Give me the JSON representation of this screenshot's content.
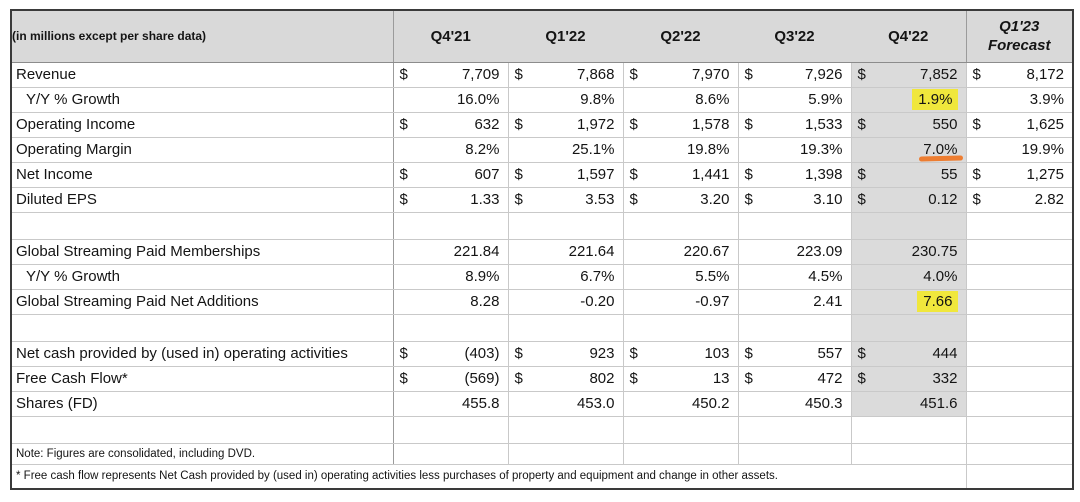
{
  "chart_data": {
    "type": "table",
    "units_note": "(in millions except per share data)",
    "columns": [
      "Q4'21",
      "Q1'22",
      "Q2'22",
      "Q3'22",
      "Q4'22",
      "Q1'23 Forecast"
    ],
    "forecast_header": {
      "line1": "Q1'23",
      "line2": "Forecast"
    },
    "rows": [
      {
        "type": "data",
        "format": "money",
        "label": "Revenue",
        "gray": true,
        "values": [
          "7,709",
          "7,868",
          "7,970",
          "7,926",
          "7,852",
          "8,172"
        ]
      },
      {
        "type": "data",
        "format": "plain",
        "label": "Y/Y % Growth",
        "indent": true,
        "gray": true,
        "highlight_yellow_col": 4,
        "values": [
          "16.0%",
          "9.8%",
          "8.6%",
          "5.9%",
          "1.9%",
          "3.9%"
        ]
      },
      {
        "type": "data",
        "format": "money",
        "label": "Operating Income",
        "gray": true,
        "values": [
          "632",
          "1,972",
          "1,578",
          "1,533",
          "550",
          "1,625"
        ]
      },
      {
        "type": "data",
        "format": "plain",
        "label": "Operating Margin",
        "gray": true,
        "underline_orange_col": 4,
        "values": [
          "8.2%",
          "25.1%",
          "19.8%",
          "19.3%",
          "7.0%",
          "19.9%"
        ]
      },
      {
        "type": "data",
        "format": "money",
        "label": "Net Income",
        "gray": true,
        "values": [
          "607",
          "1,597",
          "1,441",
          "1,398",
          "55",
          "1,275"
        ]
      },
      {
        "type": "data",
        "format": "money",
        "label": "Diluted EPS",
        "gray": true,
        "values": [
          "1.33",
          "3.53",
          "3.20",
          "3.10",
          "0.12",
          "2.82"
        ]
      },
      {
        "type": "spacer",
        "gray": true
      },
      {
        "type": "data",
        "format": "plain",
        "label": "Global Streaming Paid Memberships",
        "gray": true,
        "values": [
          "221.84",
          "221.64",
          "220.67",
          "223.09",
          "230.75",
          ""
        ]
      },
      {
        "type": "data",
        "format": "plain",
        "label": "Y/Y % Growth",
        "indent": true,
        "gray": true,
        "values": [
          "8.9%",
          "6.7%",
          "5.5%",
          "4.5%",
          "4.0%",
          ""
        ]
      },
      {
        "type": "data",
        "format": "plain",
        "label": "Global Streaming Paid Net Additions",
        "gray": true,
        "highlight_yellow_col": 4,
        "values": [
          "8.28",
          "-0.20",
          "-0.97",
          "2.41",
          "7.66",
          ""
        ]
      },
      {
        "type": "spacer",
        "gray": true
      },
      {
        "type": "data",
        "format": "money",
        "label": "Net cash provided by (used in) operating activities",
        "gray": true,
        "values": [
          "(403)",
          "923",
          "103",
          "557",
          "444",
          ""
        ]
      },
      {
        "type": "data",
        "format": "money",
        "label": "Free Cash Flow*",
        "gray": true,
        "values": [
          "(569)",
          "802",
          "13",
          "472",
          "332",
          ""
        ]
      },
      {
        "type": "data",
        "format": "plain",
        "label": "Shares (FD)",
        "gray": true,
        "values": [
          "455.8",
          "453.0",
          "450.2",
          "450.3",
          "451.6",
          ""
        ]
      },
      {
        "type": "spacer",
        "gray": false
      },
      {
        "type": "note",
        "label": "Note: Figures are consolidated, including DVD."
      },
      {
        "type": "footnote",
        "label": "* Free cash flow represents Net Cash provided by (used in) operating activities less purchases of property and equipment and change in other assets."
      }
    ]
  },
  "colors": {
    "header_gray": "#d9d9d9",
    "column_gray": "#dbdbdb",
    "highlight_yellow": "#f0e73c",
    "underline_orange": "#ed7d31",
    "grid_line": "#c9c9c9",
    "outer_border": "#3a3a3a"
  }
}
